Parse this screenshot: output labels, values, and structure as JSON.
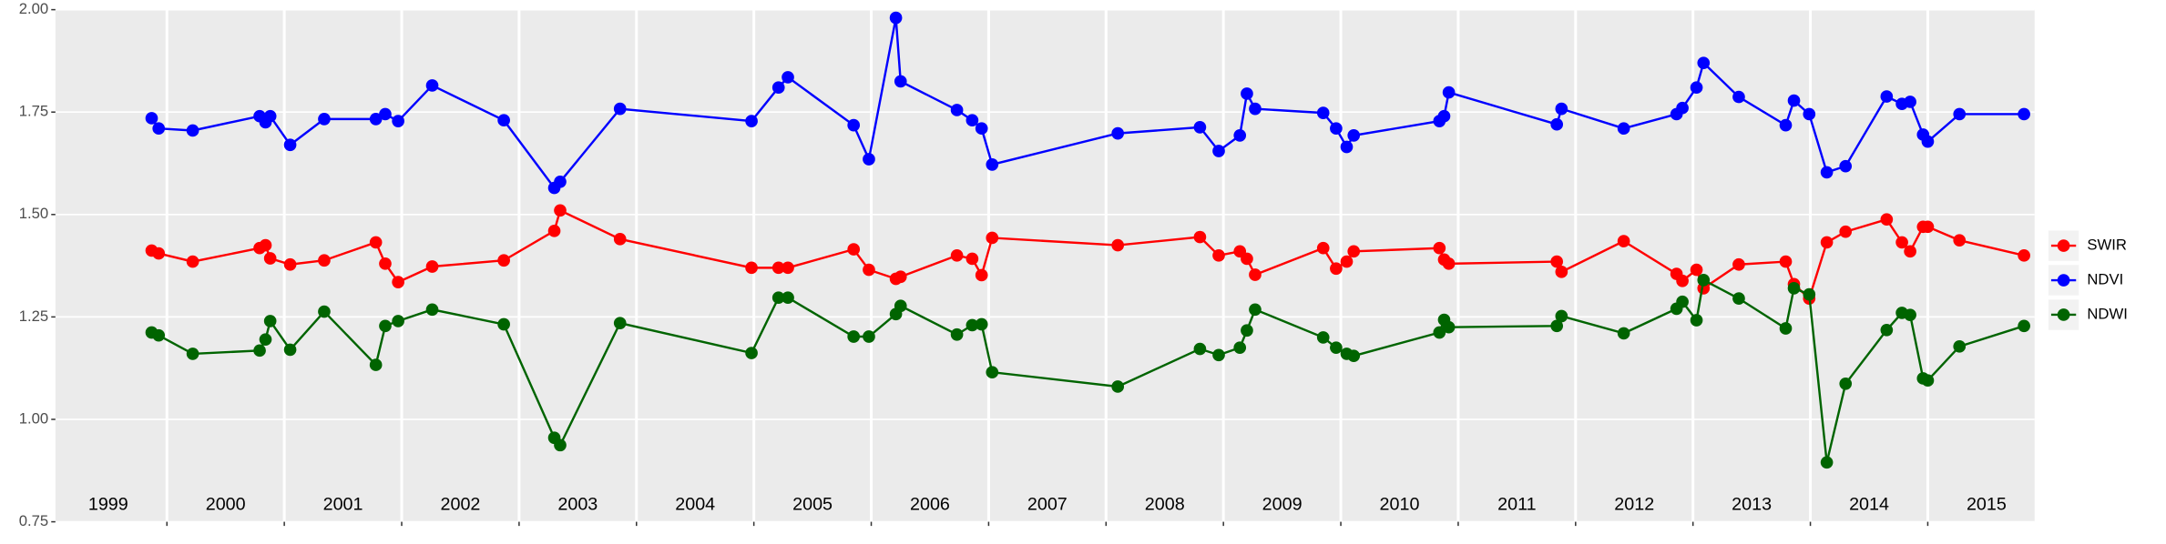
{
  "chart_data": {
    "type": "line",
    "x": [
      1999.87,
      1999.93,
      2000.22,
      2000.79,
      2000.84,
      2000.88,
      2001.05,
      2001.34,
      2001.78,
      2001.86,
      2001.97,
      2002.26,
      2002.87,
      2003.3,
      2003.35,
      2003.86,
      2004.98,
      2005.21,
      2005.29,
      2005.85,
      2005.98,
      2006.21,
      2006.25,
      2006.73,
      2006.86,
      2006.94,
      2007.03,
      2008.1,
      2008.8,
      2008.96,
      2009.14,
      2009.2,
      2009.27,
      2009.85,
      2009.96,
      2010.05,
      2010.11,
      2010.84,
      2010.88,
      2010.92,
      2011.84,
      2011.88,
      2012.41,
      2012.86,
      2012.91,
      2013.03,
      2013.09,
      2013.39,
      2013.79,
      2013.86,
      2013.99,
      2014.14,
      2014.3,
      2014.65,
      2014.78,
      2014.85,
      2014.96,
      2015.0,
      2015.27,
      2015.82
    ],
    "series": [
      {
        "name": "SWIR",
        "color": "#ff0000",
        "values": [
          1.412,
          1.405,
          1.385,
          1.418,
          1.425,
          1.393,
          1.378,
          1.388,
          1.432,
          1.38,
          1.335,
          1.373,
          1.388,
          1.46,
          1.51,
          1.44,
          1.37,
          1.37,
          1.37,
          1.415,
          1.365,
          1.343,
          1.348,
          1.4,
          1.392,
          1.352,
          1.443,
          1.425,
          1.445,
          1.4,
          1.41,
          1.392,
          1.353,
          1.418,
          1.368,
          1.385,
          1.41,
          1.418,
          1.39,
          1.38,
          1.385,
          1.36,
          1.435,
          1.355,
          1.338,
          1.365,
          1.32,
          1.378,
          1.385,
          1.33,
          1.295,
          1.432,
          1.458,
          1.488,
          1.432,
          1.41,
          1.47,
          1.47,
          1.437,
          1.4
        ]
      },
      {
        "name": "NDVI",
        "color": "#0000ff",
        "values": [
          1.735,
          1.71,
          1.705,
          1.74,
          1.725,
          1.74,
          1.67,
          1.733,
          1.733,
          1.745,
          1.728,
          1.815,
          1.73,
          1.565,
          1.58,
          1.758,
          1.728,
          1.81,
          1.835,
          1.718,
          1.635,
          1.98,
          1.825,
          1.755,
          1.73,
          1.71,
          1.622,
          1.698,
          1.713,
          1.655,
          1.693,
          1.795,
          1.758,
          1.748,
          1.71,
          1.665,
          1.693,
          1.728,
          1.74,
          1.798,
          1.72,
          1.758,
          1.71,
          1.745,
          1.76,
          1.81,
          1.87,
          1.787,
          1.718,
          1.778,
          1.745,
          1.603,
          1.618,
          1.788,
          1.77,
          1.775,
          1.695,
          1.678,
          1.745,
          1.745
        ]
      },
      {
        "name": "NDWI",
        "color": "#006400",
        "values": [
          1.212,
          1.205,
          1.16,
          1.168,
          1.195,
          1.24,
          1.17,
          1.263,
          1.133,
          1.228,
          1.24,
          1.268,
          1.232,
          0.955,
          0.937,
          1.235,
          1.162,
          1.297,
          1.297,
          1.202,
          1.202,
          1.257,
          1.277,
          1.207,
          1.23,
          1.232,
          1.115,
          1.08,
          1.172,
          1.157,
          1.175,
          1.217,
          1.268,
          1.2,
          1.175,
          1.16,
          1.155,
          1.212,
          1.243,
          1.225,
          1.228,
          1.252,
          1.21,
          1.27,
          1.287,
          1.242,
          1.34,
          1.295,
          1.222,
          1.32,
          1.305,
          0.895,
          1.087,
          1.218,
          1.26,
          1.255,
          1.1,
          1.095,
          1.178,
          1.228
        ]
      }
    ],
    "xlim": [
      1999.05,
      2015.91
    ],
    "xticks": [
      2000,
      2001,
      2002,
      2003,
      2004,
      2005,
      2006,
      2007,
      2008,
      2009,
      2010,
      2011,
      2012,
      2013,
      2014,
      2015
    ],
    "x_labels": [
      {
        "value": 1999.5,
        "label": "1999"
      },
      {
        "value": 2000.5,
        "label": "2000"
      },
      {
        "value": 2001.5,
        "label": "2001"
      },
      {
        "value": 2002.5,
        "label": "2002"
      },
      {
        "value": 2003.5,
        "label": "2003"
      },
      {
        "value": 2004.5,
        "label": "2004"
      },
      {
        "value": 2005.5,
        "label": "2005"
      },
      {
        "value": 2006.5,
        "label": "2006"
      },
      {
        "value": 2007.5,
        "label": "2007"
      },
      {
        "value": 2008.5,
        "label": "2008"
      },
      {
        "value": 2009.5,
        "label": "2009"
      },
      {
        "value": 2010.5,
        "label": "2010"
      },
      {
        "value": 2011.5,
        "label": "2011"
      },
      {
        "value": 2012.5,
        "label": "2012"
      },
      {
        "value": 2013.5,
        "label": "2013"
      },
      {
        "value": 2014.5,
        "label": "2014"
      },
      {
        "value": 2015.5,
        "label": "2015"
      }
    ],
    "ylim": [
      0.75,
      2.0
    ],
    "yticks": [
      {
        "value": 0.75,
        "label": "0.75"
      },
      {
        "value": 1.0,
        "label": "1.00"
      },
      {
        "value": 1.25,
        "label": "1.25"
      },
      {
        "value": 1.5,
        "label": "1.50"
      },
      {
        "value": 1.75,
        "label": "1.75"
      },
      {
        "value": 2.0,
        "label": "2.00"
      }
    ],
    "grid": true,
    "legend": "right"
  }
}
